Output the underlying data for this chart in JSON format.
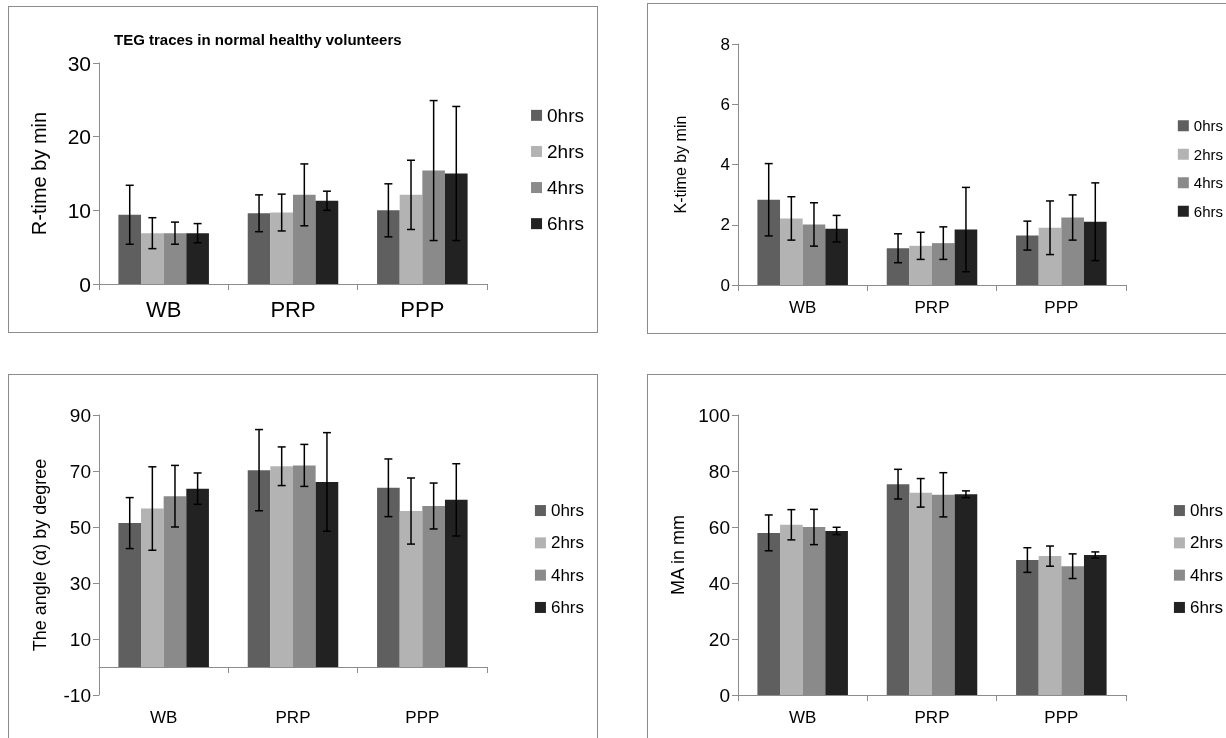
{
  "chart_data": [
    {
      "type": "bar",
      "title": "TEG traces in normal healthy volunteers",
      "ylabel": "R-time by min",
      "categories": [
        "WB",
        "PRP",
        "PPP"
      ],
      "ylim": [
        0,
        30
      ],
      "yticks": [
        0,
        10,
        20,
        30
      ],
      "grid": false,
      "legend": "right",
      "series": [
        {
          "name": "0hrs",
          "color": "#5f5f5f",
          "values": [
            9.4,
            9.6,
            10.0
          ],
          "errors": [
            4.0,
            2.5,
            3.6
          ]
        },
        {
          "name": "2hrs",
          "color": "#b3b3b3",
          "values": [
            6.9,
            9.7,
            12.1
          ],
          "errors": [
            2.1,
            2.5,
            4.7
          ]
        },
        {
          "name": "4hrs",
          "color": "#8a8a8a",
          "values": [
            6.9,
            12.1,
            15.4
          ],
          "errors": [
            1.5,
            4.2,
            9.5
          ]
        },
        {
          "name": "6hrs",
          "color": "#222222",
          "values": [
            6.9,
            11.3,
            15.0
          ],
          "errors": [
            1.3,
            1.3,
            9.1
          ]
        }
      ]
    },
    {
      "type": "bar",
      "ylabel": "K-time by min",
      "categories": [
        "WB",
        "PRP",
        "PPP"
      ],
      "ylim": [
        0,
        8
      ],
      "yticks": [
        0,
        2,
        4,
        6,
        8
      ],
      "grid": false,
      "legend": "right",
      "series": [
        {
          "name": "0hrs",
          "color": "#5f5f5f",
          "values": [
            2.83,
            1.22,
            1.64
          ],
          "errors": [
            1.2,
            0.48,
            0.48
          ]
        },
        {
          "name": "2hrs",
          "color": "#b3b3b3",
          "values": [
            2.21,
            1.3,
            1.9
          ],
          "errors": [
            0.72,
            0.45,
            0.89
          ]
        },
        {
          "name": "4hrs",
          "color": "#8a8a8a",
          "values": [
            2.01,
            1.39,
            2.24
          ],
          "errors": [
            0.72,
            0.54,
            0.75
          ]
        },
        {
          "name": "6hrs",
          "color": "#222222",
          "values": [
            1.87,
            1.84,
            2.1
          ],
          "errors": [
            0.44,
            1.4,
            1.29
          ]
        }
      ]
    },
    {
      "type": "bar",
      "ylabel": "The angle (α) by degree",
      "categories": [
        "WB",
        "PRP",
        "PPP"
      ],
      "ylim": [
        -10,
        90
      ],
      "yticks": [
        -10,
        10,
        30,
        50,
        70,
        90
      ],
      "grid": false,
      "legend": "right",
      "series": [
        {
          "name": "0hrs",
          "color": "#5f5f5f",
          "values": [
            51.4,
            70.3,
            64.0
          ],
          "errors": [
            9.1,
            14.5,
            10.3
          ]
        },
        {
          "name": "2hrs",
          "color": "#b3b3b3",
          "values": [
            56.6,
            71.7,
            55.7
          ],
          "errors": [
            14.9,
            6.9,
            11.8
          ]
        },
        {
          "name": "4hrs",
          "color": "#8a8a8a",
          "values": [
            61.0,
            72.0,
            57.5
          ],
          "errors": [
            11.0,
            7.5,
            8.2
          ]
        },
        {
          "name": "6hrs",
          "color": "#222222",
          "values": [
            63.7,
            66.1,
            59.7
          ],
          "errors": [
            5.6,
            17.6,
            12.9
          ]
        }
      ]
    },
    {
      "type": "bar",
      "ylabel": "MA in mm",
      "categories": [
        "WB",
        "PRP",
        "PPP"
      ],
      "ylim": [
        0,
        100
      ],
      "yticks": [
        0,
        20,
        40,
        60,
        80,
        100
      ],
      "grid": false,
      "legend": "right",
      "series": [
        {
          "name": "0hrs",
          "color": "#5f5f5f",
          "values": [
            57.9,
            75.3,
            48.2
          ],
          "errors": [
            6.4,
            5.3,
            4.4
          ]
        },
        {
          "name": "2hrs",
          "color": "#b3b3b3",
          "values": [
            60.8,
            72.2,
            49.6
          ],
          "errors": [
            5.4,
            5.1,
            3.6
          ]
        },
        {
          "name": "4hrs",
          "color": "#8a8a8a",
          "values": [
            60.0,
            71.5,
            46.0
          ],
          "errors": [
            6.3,
            7.9,
            4.4
          ]
        },
        {
          "name": "6hrs",
          "color": "#222222",
          "values": [
            58.6,
            71.7,
            50.0
          ],
          "errors": [
            1.3,
            1.2,
            1.1
          ]
        }
      ]
    }
  ]
}
